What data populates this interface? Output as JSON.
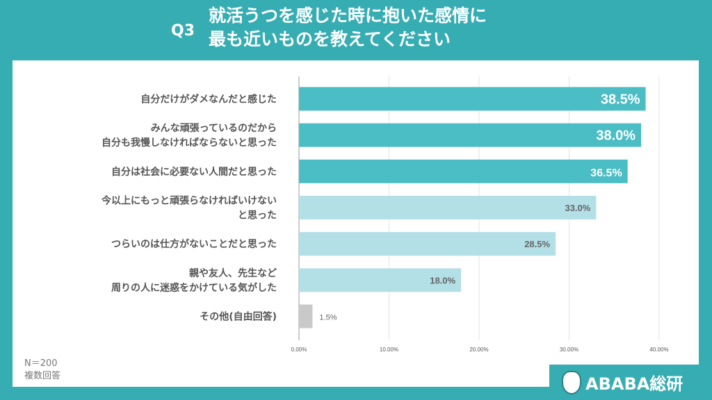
{
  "header": {
    "question": "Q3",
    "title": "就活うつを感じた時に抱いた感情に\n最も近いものを教えてください"
  },
  "footer": {
    "n": "N＝200",
    "note": "複数回答",
    "logo": "ABABA総研"
  },
  "colors": {
    "background": "#36adb3",
    "top": "#4bbdc4",
    "mid": "#b3dfe7",
    "other": "#c9c9c9"
  },
  "chart_data": {
    "type": "bar",
    "orientation": "horizontal",
    "categories": [
      "自分だけがダメなんだと感じた",
      "みんな頑張っているのだから\n自分も我慢しなければならないと思った",
      "自分は社会に必要ない人間だと思った",
      "今以上にもっと頑張らなければいけない\nと思った",
      "つらいのは仕方がないことだと思った",
      "親や友人、先生など\n周りの人に迷惑をかけている気がした",
      "その他(自由回答)"
    ],
    "values": [
      38.5,
      38.0,
      36.5,
      33.0,
      28.5,
      18.0,
      1.5
    ],
    "data_labels": [
      "38.5%",
      "38.0%",
      "36.5%",
      "33.0%",
      "28.5%",
      "18.0%",
      "1.5%"
    ],
    "xlim": [
      0,
      40
    ],
    "xticks": [
      "0.00%",
      "10.00%",
      "20.00%",
      "30.00%",
      "40.00%"
    ],
    "grid": true
  }
}
